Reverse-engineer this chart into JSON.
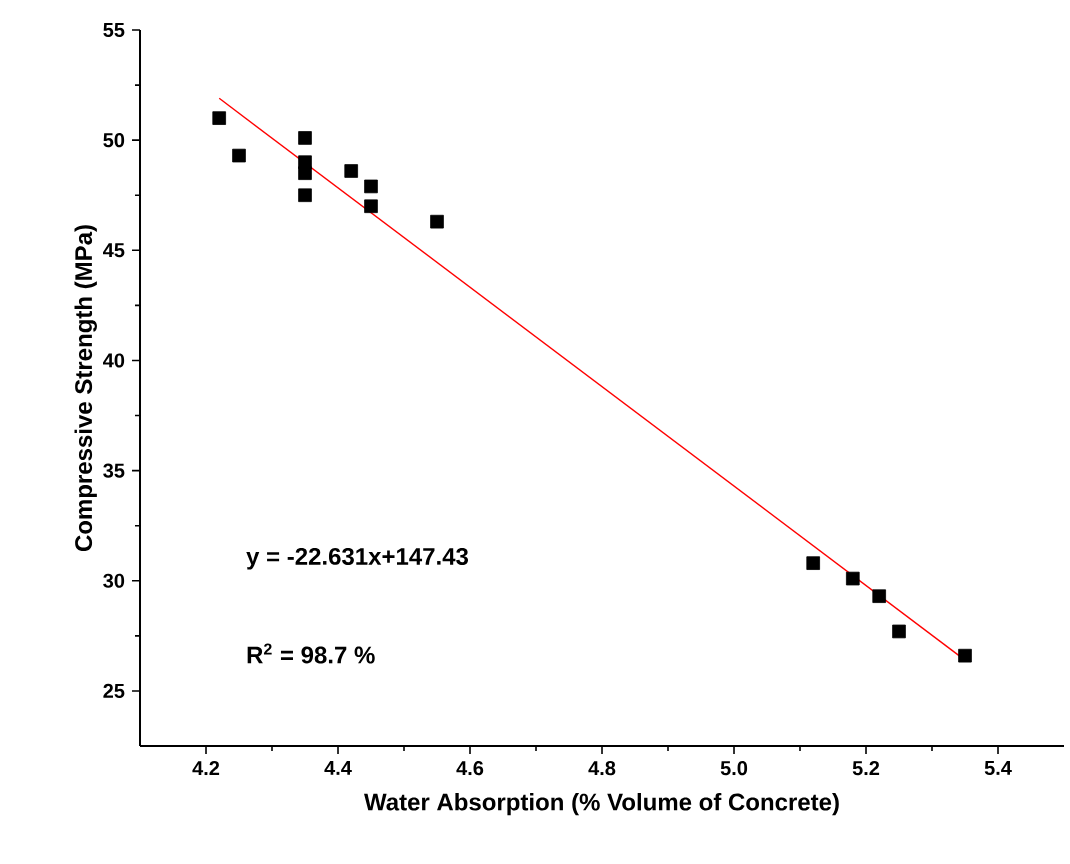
{
  "chart_data": {
    "type": "scatter",
    "xlabel": "Water Absorption (% Volume of Concrete)",
    "ylabel": "Compressive Strength (MPa)",
    "xlim": [
      4.1,
      5.5
    ],
    "ylim": [
      22.5,
      55
    ],
    "xticks": [
      4.2,
      4.4,
      4.6,
      4.8,
      {
        "value": 5,
        "label": "5.0"
      },
      5.2,
      5.4
    ],
    "yticks": [
      25,
      30,
      35,
      40,
      45,
      50,
      55
    ],
    "grid": false,
    "annotations": [
      "y = -22.631x+147.43",
      "R$^{2}$ = 98.7 %"
    ],
    "series": [
      {
        "color": "#000000",
        "marker": "square",
        "x": [
          4.22,
          4.25,
          4.35,
          4.35,
          4.35,
          4.35,
          4.42,
          4.45,
          4.45,
          4.55,
          5.12,
          5.18,
          5.22,
          5.25,
          5.35
        ],
        "values": [
          51.0,
          49.3,
          50.1,
          49.0,
          48.5,
          47.5,
          48.6,
          47.9,
          47.0,
          46.3,
          30.8,
          30.1,
          29.3,
          27.7,
          26.6
        ]
      },
      {
        "type": "line",
        "color": "#ff0000",
        "marker": "none",
        "line_style": "solid",
        "x": [
          4.22,
          5.35
        ],
        "values": [
          51.9,
          26.4
        ]
      }
    ]
  }
}
